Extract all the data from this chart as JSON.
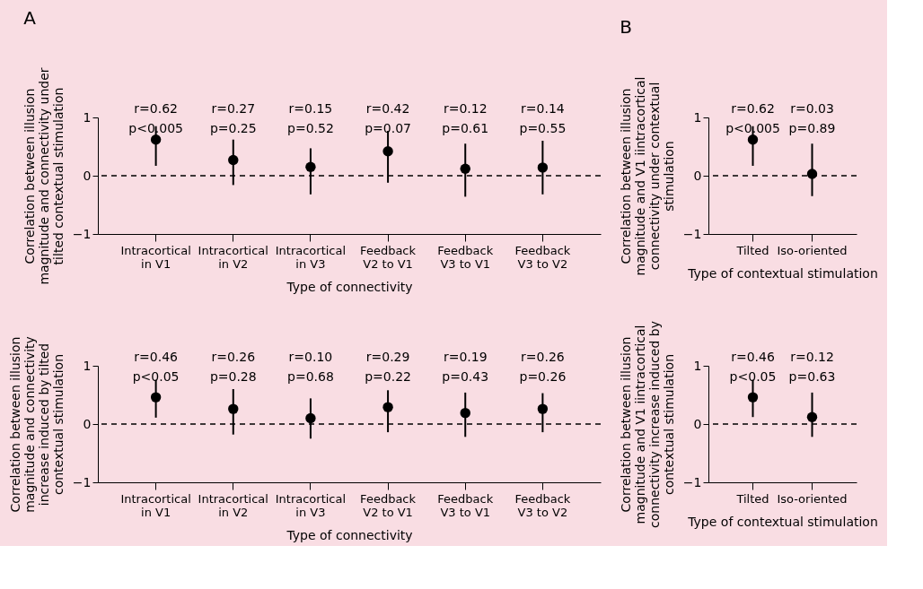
{
  "chart_data": [
    {
      "type": "scatter",
      "title": "A",
      "categories": [
        "Intracortical in V1",
        "Intracortical in V2",
        "Intracortical in V3",
        "Feedback V2 to V1",
        "Feedback V3 to V1",
        "Feedback V3 to V2"
      ],
      "values": [
        0.62,
        0.27,
        0.15,
        0.42,
        0.12,
        0.14
      ],
      "errors": [
        [
          0.17,
          0.85
        ],
        [
          -0.16,
          0.62
        ],
        [
          -0.32,
          0.47
        ],
        [
          -0.12,
          0.77
        ],
        [
          -0.36,
          0.55
        ],
        [
          -0.32,
          0.6
        ]
      ],
      "value_labels": [
        "r=0.62\np<0.005",
        "r=0.27\np=0.25",
        "r=0.15\np=0.52",
        "r=0.42\np=0.07",
        "r=0.12\np=0.61",
        "r=0.14\np=0.55"
      ],
      "color": "#000000",
      "marker": "circle",
      "ylabel": "Correlation between illusion magnitude and connectivity under tilted contextual stimulation",
      "xlabel": "Type of connectivity",
      "ylim": [
        -1,
        1
      ],
      "yticks": [
        -1,
        0,
        1
      ],
      "ref_lines": [
        {
          "axis": "y",
          "value": 0,
          "line_style": "dashed"
        }
      ],
      "grid": false
    },
    {
      "type": "scatter",
      "title": "B",
      "categories": [
        "Tilted",
        "Iso-oriented"
      ],
      "values": [
        0.62,
        0.03
      ],
      "errors": [
        [
          0.17,
          0.85
        ],
        [
          -0.35,
          0.55
        ]
      ],
      "value_labels": [
        "r=0.62\np<0.005",
        "r=0.03\np=0.89"
      ],
      "color": "#000000",
      "marker": "circle",
      "ylabel": "Correlation between illusion magnitude and V1 iintracortical connectivity under contextual stimulation",
      "xlabel": "Type of contextual stimulation",
      "ylim": [
        -1,
        1
      ],
      "yticks": [
        -1,
        0,
        1
      ],
      "ref_lines": [
        {
          "axis": "y",
          "value": 0,
          "line_style": "dashed"
        }
      ],
      "grid": false
    },
    {
      "type": "scatter",
      "categories": [
        "Intracortical in V1",
        "Intracortical in V2",
        "Intracortical in V3",
        "Feedback V2 to V1",
        "Feedback V3 to V1",
        "Feedback V3 to V2"
      ],
      "values": [
        0.46,
        0.26,
        0.1,
        0.29,
        0.19,
        0.26
      ],
      "errors": [
        [
          0.11,
          0.76
        ],
        [
          -0.18,
          0.6
        ],
        [
          -0.25,
          0.44
        ],
        [
          -0.14,
          0.58
        ],
        [
          -0.22,
          0.54
        ],
        [
          -0.14,
          0.53
        ]
      ],
      "value_labels": [
        "r=0.46\np<0.05",
        "r=0.26\np=0.28",
        "r=0.10\np=0.68",
        "r=0.29\np=0.22",
        "r=0.19\np=0.43",
        "r=0.26\np=0.26"
      ],
      "color": "#000000",
      "marker": "circle",
      "ylabel": "Correlation between illusion magnitude and connectivity increase induced by tilted contextual stimulation",
      "xlabel": "Type of connectivity",
      "ylim": [
        -1,
        1
      ],
      "yticks": [
        -1,
        0,
        1
      ],
      "ref_lines": [
        {
          "axis": "y",
          "value": 0,
          "line_style": "dashed"
        }
      ],
      "grid": false
    },
    {
      "type": "scatter",
      "categories": [
        "Tilted",
        "Iso-oriented"
      ],
      "values": [
        0.46,
        0.12
      ],
      "errors": [
        [
          0.12,
          0.76
        ],
        [
          -0.22,
          0.54
        ]
      ],
      "value_labels": [
        "r=0.46\np<0.05",
        "r=0.12\np=0.63"
      ],
      "color": "#000000",
      "marker": "circle",
      "ylabel": "Correlation between illusion magnitude and V1 iintracortical connectivity increase induced by contextual stimulation",
      "xlabel": "Type of contextual stimulation",
      "ylim": [
        -1,
        1
      ],
      "yticks": [
        -1,
        0,
        1
      ],
      "ref_lines": [
        {
          "axis": "y",
          "value": 0,
          "line_style": "dashed"
        }
      ],
      "grid": false
    }
  ]
}
